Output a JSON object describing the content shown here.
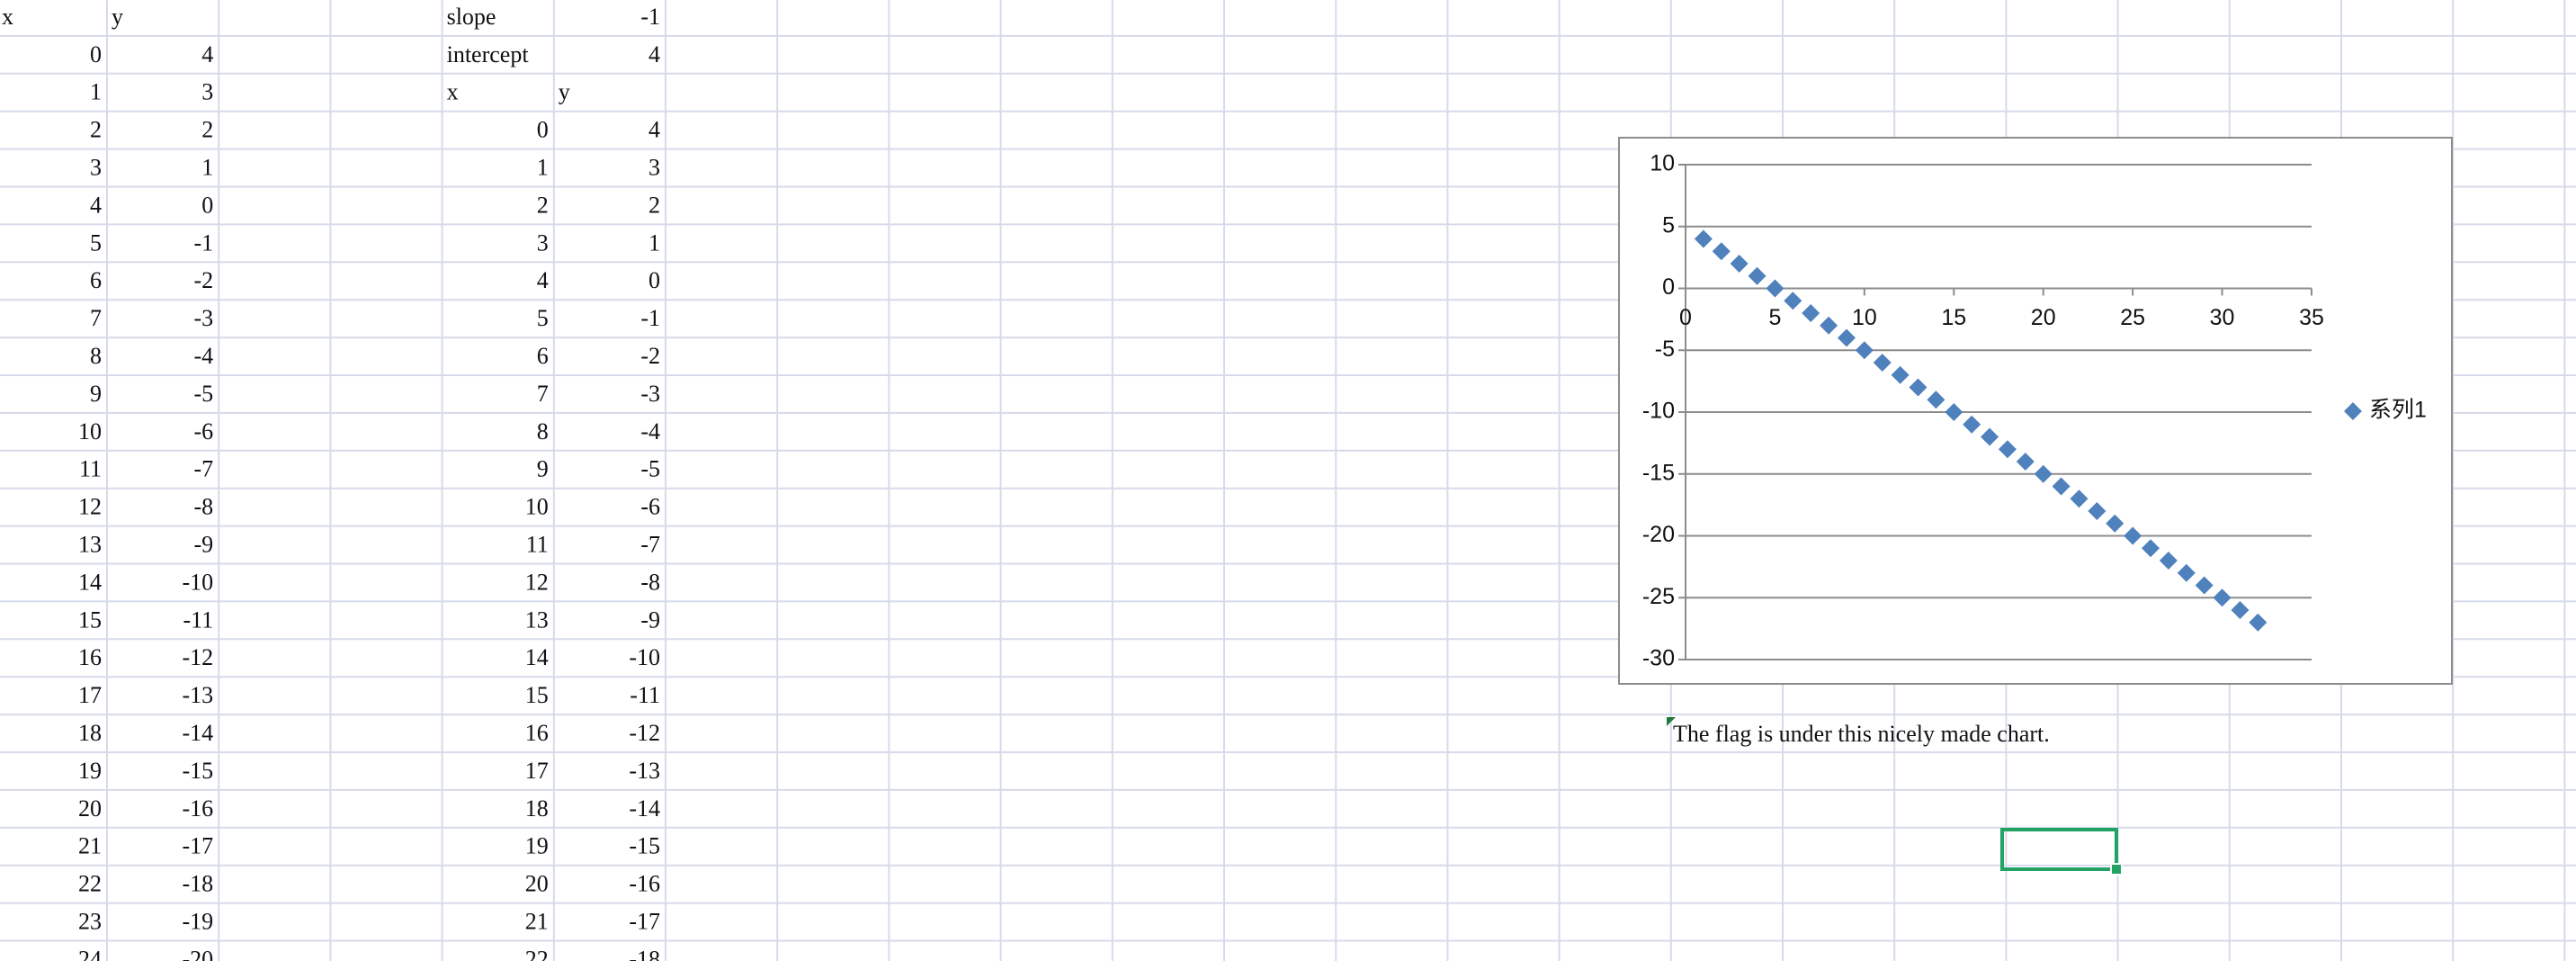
{
  "sheet": {
    "left_table": {
      "header": [
        "x",
        "y"
      ],
      "rows": [
        [
          0,
          4
        ],
        [
          1,
          3
        ],
        [
          2,
          2
        ],
        [
          3,
          1
        ],
        [
          4,
          0
        ],
        [
          5,
          -1
        ],
        [
          6,
          -2
        ],
        [
          7,
          -3
        ],
        [
          8,
          -4
        ],
        [
          9,
          -5
        ],
        [
          10,
          -6
        ],
        [
          11,
          -7
        ],
        [
          12,
          -8
        ],
        [
          13,
          -9
        ],
        [
          14,
          -10
        ],
        [
          15,
          -11
        ],
        [
          16,
          -12
        ],
        [
          17,
          -13
        ],
        [
          18,
          -14
        ],
        [
          19,
          -15
        ],
        [
          20,
          -16
        ],
        [
          21,
          -17
        ],
        [
          22,
          -18
        ],
        [
          23,
          -19
        ],
        [
          24,
          -20
        ]
      ]
    },
    "params": [
      [
        "slope",
        -1
      ],
      [
        "intercept",
        4
      ]
    ],
    "right_table": {
      "header": [
        "x",
        "y"
      ],
      "rows": [
        [
          0,
          4
        ],
        [
          1,
          3
        ],
        [
          2,
          2
        ],
        [
          3,
          1
        ],
        [
          4,
          0
        ],
        [
          5,
          -1
        ],
        [
          6,
          -2
        ],
        [
          7,
          -3
        ],
        [
          8,
          -4
        ],
        [
          9,
          -5
        ],
        [
          10,
          -6
        ],
        [
          11,
          -7
        ],
        [
          12,
          -8
        ],
        [
          13,
          -9
        ],
        [
          14,
          -10
        ],
        [
          15,
          -11
        ],
        [
          16,
          -12
        ],
        [
          17,
          -13
        ],
        [
          18,
          -14
        ],
        [
          19,
          -15
        ],
        [
          20,
          -16
        ],
        [
          21,
          -17
        ],
        [
          22,
          -18
        ]
      ]
    },
    "note": "The flag is under this nicely made chart."
  },
  "chart_data": {
    "type": "scatter",
    "x": [
      1,
      2,
      3,
      4,
      5,
      6,
      7,
      8,
      9,
      10,
      11,
      12,
      13,
      14,
      15,
      16,
      17,
      18,
      19,
      20,
      21,
      22,
      23,
      24,
      25,
      26,
      27,
      28,
      29,
      30,
      31,
      32
    ],
    "series": [
      {
        "name": "系列1",
        "color": "#4f81bd",
        "values": [
          4,
          3,
          2,
          1,
          0,
          -1,
          -2,
          -3,
          -4,
          -5,
          -6,
          -7,
          -8,
          -9,
          -10,
          -11,
          -12,
          -13,
          -14,
          -15,
          -16,
          -17,
          -18,
          -19,
          -20,
          -21,
          -22,
          -23,
          -24,
          -25,
          -26,
          -27
        ]
      }
    ],
    "xlim": [
      0,
      35
    ],
    "xticks": [
      0,
      5,
      10,
      15,
      20,
      25,
      30,
      35
    ],
    "ylim": [
      -30,
      10
    ],
    "yticks": [
      -30,
      -25,
      -20,
      -15,
      -10,
      -5,
      0,
      5,
      10
    ],
    "grid": true,
    "legend": "right"
  }
}
